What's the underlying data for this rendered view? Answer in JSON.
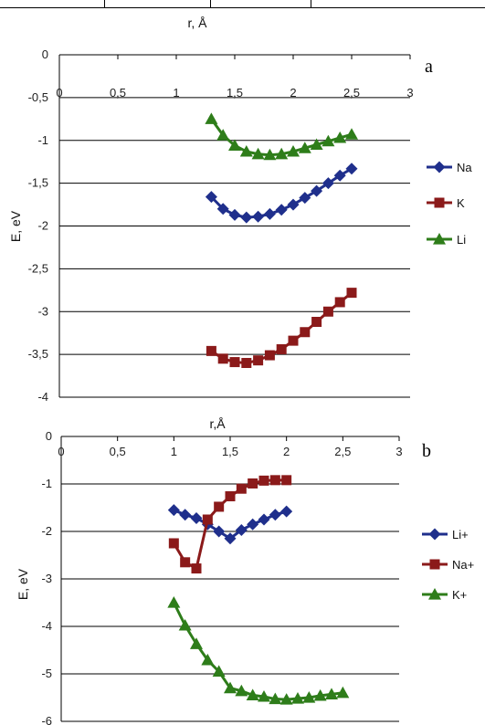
{
  "chart_data": [
    {
      "type": "line",
      "panel_label": "a",
      "xlabel": "r, Å",
      "ylabel": "E, eV",
      "xlim": [
        0,
        3
      ],
      "ylim": [
        -4,
        0
      ],
      "xticks": [
        "0",
        "0,5",
        "1",
        "1,5",
        "2",
        "2,5",
        "3"
      ],
      "yticks": [
        "0",
        "-0,5",
        "-1",
        "-1,5",
        "-2",
        "-2,5",
        "-3",
        "-3,5",
        "-4"
      ],
      "legend_position": "right",
      "series": [
        {
          "name": "Na",
          "color": "#1f2f8c",
          "marker": "diamond",
          "x": [
            1.3,
            1.4,
            1.5,
            1.6,
            1.7,
            1.8,
            1.9,
            2.0,
            2.1,
            2.2,
            2.3,
            2.4,
            2.5
          ],
          "y": [
            -1.66,
            -1.8,
            -1.87,
            -1.9,
            -1.89,
            -1.86,
            -1.81,
            -1.75,
            -1.67,
            -1.59,
            -1.5,
            -1.41,
            -1.33
          ]
        },
        {
          "name": "K",
          "color": "#8b1a1a",
          "marker": "square",
          "x": [
            1.3,
            1.4,
            1.5,
            1.6,
            1.7,
            1.8,
            1.9,
            2.0,
            2.1,
            2.2,
            2.3,
            2.4,
            2.5
          ],
          "y": [
            -3.46,
            -3.55,
            -3.59,
            -3.6,
            -3.57,
            -3.51,
            -3.44,
            -3.34,
            -3.24,
            -3.12,
            -3.0,
            -2.89,
            -2.78
          ]
        },
        {
          "name": "Li",
          "color": "#2e7d1a",
          "marker": "triangle",
          "x": [
            1.3,
            1.4,
            1.5,
            1.6,
            1.7,
            1.8,
            1.9,
            2.0,
            2.1,
            2.2,
            2.3,
            2.4,
            2.5
          ],
          "y": [
            -0.75,
            -0.94,
            -1.06,
            -1.13,
            -1.16,
            -1.17,
            -1.16,
            -1.13,
            -1.09,
            -1.05,
            -1.01,
            -0.97,
            -0.93
          ]
        }
      ]
    },
    {
      "type": "line",
      "panel_label": "b",
      "xlabel": "r,Å",
      "ylabel": "E, eV",
      "xlim": [
        0,
        3
      ],
      "ylim": [
        -6,
        0
      ],
      "xticks": [
        "0",
        "0,5",
        "1",
        "1,5",
        "2",
        "2,5",
        "3"
      ],
      "yticks": [
        "0",
        "-1",
        "-2",
        "-3",
        "-4",
        "-5",
        "-6"
      ],
      "legend_position": "right",
      "series": [
        {
          "name": "Li+",
          "color": "#1f2f8c",
          "marker": "diamond",
          "x": [
            1.0,
            1.1,
            1.2,
            1.3,
            1.4,
            1.5,
            1.6,
            1.7,
            1.8,
            1.9,
            2.0
          ],
          "y": [
            -1.55,
            -1.65,
            -1.72,
            -1.85,
            -2.0,
            -2.15,
            -1.97,
            -1.85,
            -1.75,
            -1.65,
            -1.58
          ]
        },
        {
          "name": "Na+",
          "color": "#8b1a1a",
          "marker": "square",
          "x": [
            1.0,
            1.1,
            1.2,
            1.3,
            1.4,
            1.5,
            1.6,
            1.7,
            1.8,
            1.9,
            2.0
          ],
          "y": [
            -2.25,
            -2.65,
            -2.78,
            -1.75,
            -1.48,
            -1.26,
            -1.1,
            -0.99,
            -0.93,
            -0.92,
            -0.92
          ]
        },
        {
          "name": "K+",
          "color": "#2e7d1a",
          "marker": "triangle",
          "x": [
            1.0,
            1.1,
            1.2,
            1.3,
            1.4,
            1.5,
            1.6,
            1.7,
            1.8,
            1.9,
            2.0,
            2.1,
            2.2,
            2.3,
            2.4,
            2.5
          ],
          "y": [
            -3.5,
            -3.98,
            -4.37,
            -4.71,
            -4.95,
            -5.3,
            -5.36,
            -5.45,
            -5.48,
            -5.53,
            -5.54,
            -5.52,
            -5.5,
            -5.46,
            -5.43,
            -5.4
          ]
        }
      ]
    }
  ]
}
